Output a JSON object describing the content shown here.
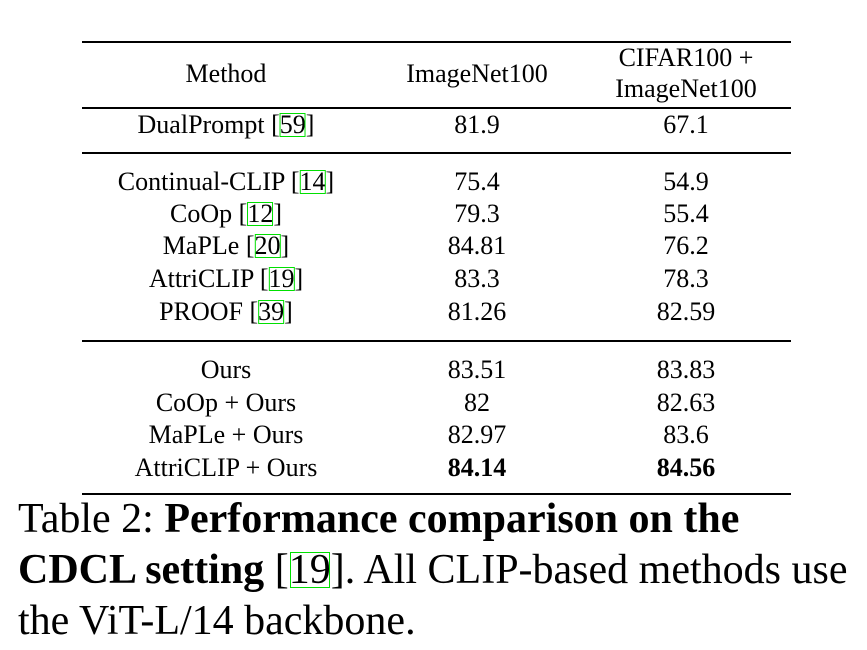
{
  "table": {
    "headers": {
      "method": "Method",
      "col1": "ImageNet100",
      "col2_line1": "CIFAR100 +",
      "col2_line2": "ImageNet100"
    },
    "rows": [
      {
        "method": "DualPrompt",
        "ref": "59",
        "v1": "81.9",
        "v2": "67.1"
      },
      {
        "method": "Continual-CLIP",
        "ref": "14",
        "v1": "75.4",
        "v2": "54.9"
      },
      {
        "method": "CoOp",
        "ref": "12",
        "v1": "79.3",
        "v2": "55.4"
      },
      {
        "method": "MaPLe",
        "ref": "20",
        "v1": "84.81",
        "v2": "76.2"
      },
      {
        "method": "AttriCLIP",
        "ref": "19",
        "v1": "83.3",
        "v2": "78.3"
      },
      {
        "method": "PROOF",
        "ref": "39",
        "v1": "81.26",
        "v2": "82.59"
      },
      {
        "method": "Ours",
        "ref": "",
        "v1": "83.51",
        "v2": "83.83"
      },
      {
        "method": "CoOp + Ours",
        "ref": "",
        "v1": "82",
        "v2": "82.63"
      },
      {
        "method": "MaPLe + Ours",
        "ref": "",
        "v1": "82.97",
        "v2": "83.6"
      },
      {
        "method": "AttriCLIP + Ours",
        "ref": "",
        "v1": "84.14",
        "v2": "84.56"
      }
    ]
  },
  "caption": {
    "label": "Table 2:",
    "bold_text": "Performance comparison on the CDCL setting",
    "ref": "19",
    "rest": ". All CLIP-based methods use the ViT-L/14 backbone."
  },
  "colors": {
    "ref_box": "#00e000"
  }
}
